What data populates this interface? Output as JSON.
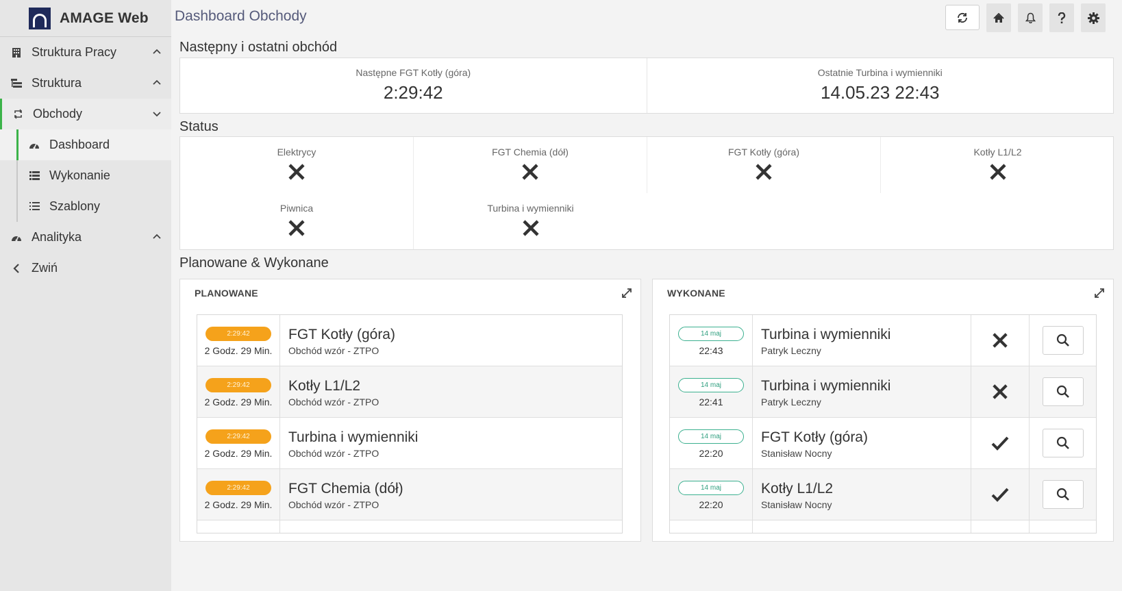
{
  "app": {
    "title": "AMAGE Web"
  },
  "sidebar": {
    "items": [
      {
        "label": "Struktura Pracy",
        "icon": "building-icon"
      },
      {
        "label": "Struktura",
        "icon": "sitemap-icon"
      },
      {
        "label": "Obchody",
        "icon": "sync-icon"
      },
      {
        "label": "Dashboard",
        "icon": "gauge-icon"
      },
      {
        "label": "Wykonanie",
        "icon": "list-icon"
      },
      {
        "label": "Szablony",
        "icon": "list-icon"
      },
      {
        "label": "Analityka",
        "icon": "gauge-icon"
      },
      {
        "label": "Zwiń",
        "icon": "chevron-left-icon"
      }
    ],
    "accent": "#3cb34a"
  },
  "header": {
    "title": "Dashboard Obchody"
  },
  "next_last": {
    "section_title": "Następny i ostatni obchód",
    "next_label": "Następne FGT Kotły (góra)",
    "next_value": "2:29:42",
    "last_label": "Ostatnie Turbina i wymienniki",
    "last_value": "14.05.23 22:43"
  },
  "status": {
    "section_title": "Status",
    "items": [
      {
        "label": "Elektrycy",
        "state": "x"
      },
      {
        "label": "FGT Chemia (dół)",
        "state": "x"
      },
      {
        "label": "FGT Kotły (góra)",
        "state": "x"
      },
      {
        "label": "Kotły L1/L2",
        "state": "x"
      },
      {
        "label": "Piwnica",
        "state": "x"
      },
      {
        "label": "Turbina i wymienniki",
        "state": "x"
      }
    ]
  },
  "planned_done": {
    "section_title": "Planowane & Wykonane",
    "planned": {
      "title": "PLANOWANE",
      "rows": [
        {
          "badge": "2:29:42",
          "eta": "2 Godz. 29 Min.",
          "name": "FGT Kotły (góra)",
          "desc": "Obchód wzór - ZTPO"
        },
        {
          "badge": "2:29:42",
          "eta": "2 Godz. 29 Min.",
          "name": "Kotły L1/L2",
          "desc": "Obchód wzór - ZTPO"
        },
        {
          "badge": "2:29:42",
          "eta": "2 Godz. 29 Min.",
          "name": "Turbina i wymienniki",
          "desc": "Obchód wzór - ZTPO"
        },
        {
          "badge": "2:29:42",
          "eta": "2 Godz. 29 Min.",
          "name": "FGT Chemia (dół)",
          "desc": "Obchód wzór - ZTPO"
        }
      ]
    },
    "done": {
      "title": "WYKONANE",
      "rows": [
        {
          "date": "14 maj",
          "time": "22:43",
          "name": "Turbina i wymienniki",
          "person": "Patryk Leczny",
          "status": "x"
        },
        {
          "date": "14 maj",
          "time": "22:41",
          "name": "Turbina i wymienniki",
          "person": "Patryk Leczny",
          "status": "x"
        },
        {
          "date": "14 maj",
          "time": "22:20",
          "name": "FGT Kotły (góra)",
          "person": "Stanisław Nocny",
          "status": "check"
        },
        {
          "date": "14 maj",
          "time": "22:20",
          "name": "Kotły L1/L2",
          "person": "Stanisław Nocny",
          "status": "check"
        }
      ]
    }
  },
  "colors": {
    "badge_orange": "#f5a21b",
    "badge_green": "#3bb08f",
    "title_blue": "#555a7a"
  }
}
